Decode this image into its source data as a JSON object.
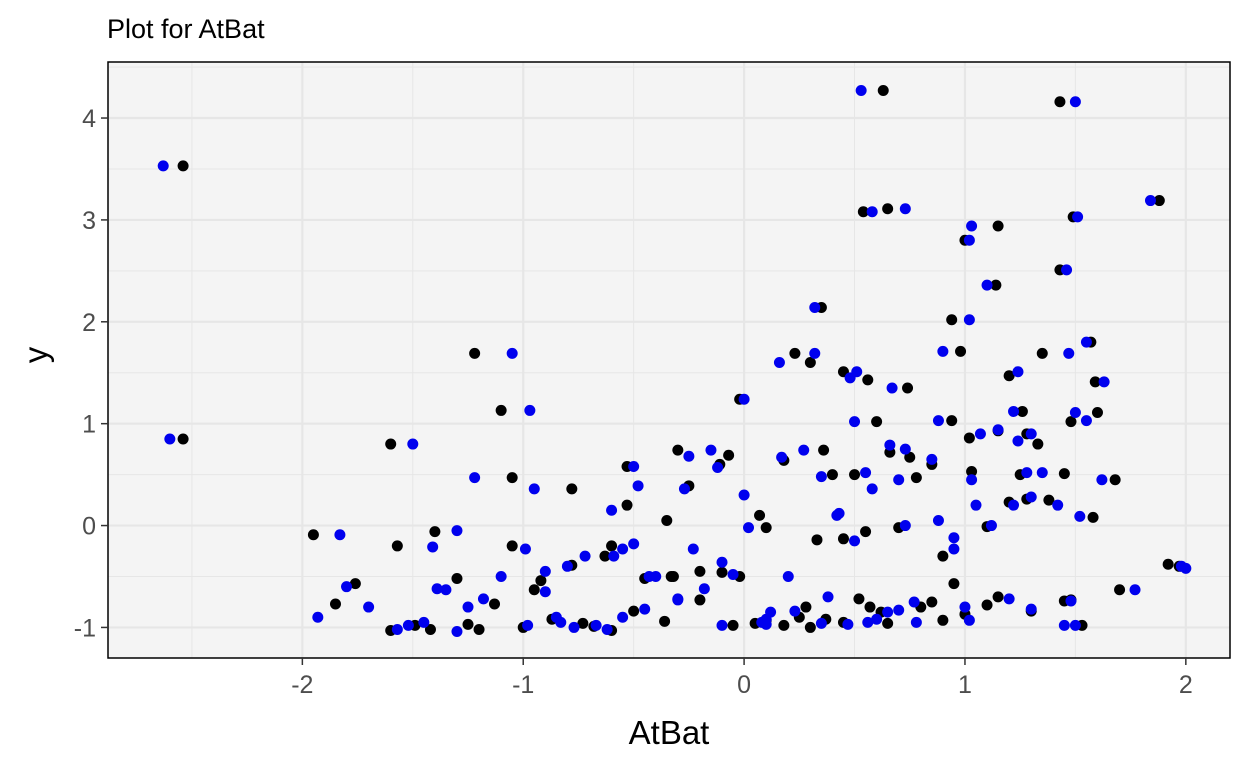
{
  "chart_data": {
    "type": "scatter",
    "title": "Plot for  AtBat",
    "xlabel": "AtBat",
    "ylabel": "y",
    "xlim": [
      -2.88,
      2.2
    ],
    "ylim": [
      -1.3,
      4.55
    ],
    "x_ticks": [
      "-2",
      "-1",
      "0",
      "1",
      "2"
    ],
    "y_ticks": [
      "-1",
      "0",
      "1",
      "2",
      "3",
      "4"
    ],
    "grid": true,
    "legend": "none",
    "colors": {
      "panel": "#f4f4f4",
      "grid": "#e6e6e6",
      "series_a": "#000000",
      "series_b": "#0000ee"
    },
    "series": [
      {
        "color": "#000000",
        "points": [
          [
            -2.54,
            3.53
          ],
          [
            -2.54,
            0.85
          ],
          [
            0.63,
            4.27
          ],
          [
            1.43,
            4.16
          ],
          [
            1.88,
            3.19
          ],
          [
            0.54,
            3.08
          ],
          [
            0.65,
            3.11
          ],
          [
            1.15,
            2.94
          ],
          [
            1.49,
            3.03
          ],
          [
            1.0,
            2.8
          ],
          [
            1.43,
            2.51
          ],
          [
            1.14,
            2.36
          ],
          [
            0.35,
            2.14
          ],
          [
            0.94,
            2.02
          ],
          [
            -1.22,
            1.69
          ],
          [
            0.23,
            1.69
          ],
          [
            0.98,
            1.71
          ],
          [
            0.3,
            1.6
          ],
          [
            1.35,
            1.69
          ],
          [
            1.57,
            1.8
          ],
          [
            1.2,
            1.47
          ],
          [
            0.45,
            1.51
          ],
          [
            0.56,
            1.43
          ],
          [
            0.74,
            1.35
          ],
          [
            1.59,
            1.41
          ],
          [
            -1.1,
            1.13
          ],
          [
            -0.02,
            1.24
          ],
          [
            0.6,
            1.02
          ],
          [
            0.94,
            1.03
          ],
          [
            1.26,
            1.12
          ],
          [
            1.6,
            1.11
          ],
          [
            -1.6,
            0.8
          ],
          [
            -1.05,
            0.47
          ],
          [
            -0.53,
            0.58
          ],
          [
            -0.3,
            0.74
          ],
          [
            -0.11,
            0.6
          ],
          [
            -0.07,
            0.69
          ],
          [
            0.18,
            0.64
          ],
          [
            0.36,
            0.74
          ],
          [
            0.5,
            0.5
          ],
          [
            0.66,
            0.72
          ],
          [
            0.75,
            0.67
          ],
          [
            0.85,
            0.6
          ],
          [
            1.02,
            0.86
          ],
          [
            1.15,
            0.93
          ],
          [
            1.28,
            0.9
          ],
          [
            1.33,
            0.8
          ],
          [
            1.45,
            0.51
          ],
          [
            1.48,
            1.02
          ],
          [
            1.68,
            0.45
          ],
          [
            -0.78,
            0.36
          ],
          [
            -0.53,
            0.2
          ],
          [
            -0.35,
            0.05
          ],
          [
            -0.25,
            0.39
          ],
          [
            0.07,
            0.1
          ],
          [
            0.33,
            -0.14
          ],
          [
            0.45,
            -0.13
          ],
          [
            0.55,
            -0.06
          ],
          [
            0.7,
            -0.02
          ],
          [
            0.9,
            -0.3
          ],
          [
            1.03,
            0.53
          ],
          [
            1.1,
            -0.01
          ],
          [
            1.2,
            0.23
          ],
          [
            1.28,
            0.26
          ],
          [
            1.38,
            0.25
          ],
          [
            1.58,
            0.08
          ],
          [
            -1.95,
            -0.09
          ],
          [
            -1.57,
            -0.2
          ],
          [
            -1.4,
            -0.06
          ],
          [
            -1.3,
            -0.52
          ],
          [
            -1.05,
            -0.2
          ],
          [
            -0.92,
            -0.54
          ],
          [
            -0.78,
            -0.39
          ],
          [
            -0.6,
            -0.2
          ],
          [
            -0.45,
            -0.52
          ],
          [
            -0.32,
            -0.5
          ],
          [
            -0.2,
            -0.45
          ],
          [
            -0.1,
            -0.46
          ],
          [
            -0.02,
            -0.5
          ],
          [
            0.1,
            -0.93
          ],
          [
            0.25,
            -0.9
          ],
          [
            0.37,
            -0.92
          ],
          [
            0.52,
            -0.72
          ],
          [
            0.65,
            -0.96
          ],
          [
            0.8,
            -0.8
          ],
          [
            0.95,
            -0.57
          ],
          [
            1.0,
            -0.87
          ],
          [
            1.15,
            -0.7
          ],
          [
            1.3,
            -0.84
          ],
          [
            1.48,
            -0.73
          ],
          [
            1.53,
            -0.98
          ],
          [
            1.7,
            -0.63
          ],
          [
            1.92,
            -0.38
          ],
          [
            1.97,
            -0.4
          ],
          [
            -1.85,
            -0.77
          ],
          [
            -1.76,
            -0.57
          ],
          [
            -1.6,
            -1.03
          ],
          [
            -1.49,
            -0.98
          ],
          [
            -1.42,
            -1.02
          ],
          [
            -1.25,
            -0.97
          ],
          [
            -1.13,
            -0.77
          ],
          [
            -1.0,
            -1.0
          ],
          [
            -0.87,
            -0.92
          ],
          [
            -0.73,
            -0.96
          ],
          [
            -0.6,
            -1.03
          ],
          [
            -0.5,
            -0.84
          ],
          [
            -0.36,
            -0.94
          ],
          [
            -0.2,
            -0.73
          ],
          [
            -0.05,
            -0.98
          ],
          [
            0.18,
            -0.98
          ],
          [
            0.3,
            -1.0
          ],
          [
            0.45,
            -0.95
          ],
          [
            0.57,
            -0.8
          ],
          [
            0.85,
            -0.75
          ],
          [
            1.1,
            -0.78
          ],
          [
            -1.2,
            -1.02
          ],
          [
            -0.95,
            -0.63
          ],
          [
            -0.68,
            -0.99
          ],
          [
            -0.33,
            -0.5
          ],
          [
            0.05,
            -0.96
          ],
          [
            0.62,
            -0.85
          ],
          [
            1.45,
            -0.74
          ],
          [
            0.4,
            0.5
          ],
          [
            0.78,
            0.47
          ],
          [
            1.25,
            0.5
          ],
          [
            -0.63,
            -0.3
          ],
          [
            0.1,
            -0.02
          ],
          [
            0.28,
            -0.8
          ],
          [
            0.9,
            -0.93
          ]
        ]
      },
      {
        "color": "#0000ee",
        "points": [
          [
            -2.63,
            3.53
          ],
          [
            -2.6,
            0.85
          ],
          [
            0.53,
            4.27
          ],
          [
            1.5,
            4.16
          ],
          [
            1.84,
            3.19
          ],
          [
            0.58,
            3.08
          ],
          [
            0.73,
            3.11
          ],
          [
            1.03,
            2.94
          ],
          [
            1.51,
            3.03
          ],
          [
            1.02,
            2.8
          ],
          [
            1.46,
            2.51
          ],
          [
            1.1,
            2.36
          ],
          [
            0.32,
            2.14
          ],
          [
            1.02,
            2.02
          ],
          [
            -1.05,
            1.69
          ],
          [
            0.32,
            1.69
          ],
          [
            0.9,
            1.71
          ],
          [
            0.16,
            1.6
          ],
          [
            1.47,
            1.69
          ],
          [
            1.55,
            1.8
          ],
          [
            1.24,
            1.51
          ],
          [
            0.51,
            1.51
          ],
          [
            0.48,
            1.45
          ],
          [
            0.67,
            1.35
          ],
          [
            1.63,
            1.41
          ],
          [
            -0.97,
            1.13
          ],
          [
            0.0,
            1.24
          ],
          [
            0.5,
            1.02
          ],
          [
            0.88,
            1.03
          ],
          [
            1.22,
            1.12
          ],
          [
            1.5,
            1.11
          ],
          [
            -1.5,
            0.8
          ],
          [
            -1.22,
            0.47
          ],
          [
            -0.5,
            0.58
          ],
          [
            -0.25,
            0.68
          ],
          [
            -0.12,
            0.57
          ],
          [
            -0.15,
            0.74
          ],
          [
            0.17,
            0.67
          ],
          [
            0.27,
            0.74
          ],
          [
            0.55,
            0.52
          ],
          [
            0.66,
            0.79
          ],
          [
            0.73,
            0.75
          ],
          [
            0.85,
            0.65
          ],
          [
            1.07,
            0.9
          ],
          [
            1.15,
            0.94
          ],
          [
            1.3,
            0.9
          ],
          [
            1.24,
            0.83
          ],
          [
            1.35,
            0.52
          ],
          [
            1.55,
            1.03
          ],
          [
            1.62,
            0.45
          ],
          [
            -0.95,
            0.36
          ],
          [
            -0.48,
            0.39
          ],
          [
            -0.6,
            0.15
          ],
          [
            -0.27,
            0.36
          ],
          [
            0.0,
            0.3
          ],
          [
            0.43,
            0.12
          ],
          [
            0.5,
            -0.15
          ],
          [
            0.58,
            0.36
          ],
          [
            0.73,
            0.0
          ],
          [
            0.95,
            -0.12
          ],
          [
            1.05,
            0.2
          ],
          [
            1.12,
            0.0
          ],
          [
            1.22,
            0.2
          ],
          [
            1.3,
            0.28
          ],
          [
            1.42,
            0.2
          ],
          [
            1.52,
            0.09
          ],
          [
            -1.93,
            -0.9
          ],
          [
            -1.83,
            -0.09
          ],
          [
            -1.41,
            -0.21
          ],
          [
            -1.3,
            -0.05
          ],
          [
            -0.99,
            -0.23
          ],
          [
            -0.9,
            -0.45
          ],
          [
            -0.8,
            -0.4
          ],
          [
            -0.55,
            -0.23
          ],
          [
            -0.43,
            -0.5
          ],
          [
            -0.3,
            -0.72
          ],
          [
            -0.23,
            -0.23
          ],
          [
            -0.1,
            -0.36
          ],
          [
            -0.05,
            -0.48
          ],
          [
            0.08,
            -0.95
          ],
          [
            0.23,
            -0.84
          ],
          [
            0.38,
            -0.7
          ],
          [
            0.56,
            -0.95
          ],
          [
            0.7,
            -0.83
          ],
          [
            0.77,
            -0.75
          ],
          [
            0.95,
            -0.23
          ],
          [
            1.0,
            -0.8
          ],
          [
            1.2,
            -0.72
          ],
          [
            1.3,
            -0.82
          ],
          [
            1.5,
            -0.98
          ],
          [
            1.48,
            -0.74
          ],
          [
            1.77,
            -0.63
          ],
          [
            1.98,
            -0.4
          ],
          [
            2.0,
            -0.42
          ],
          [
            -1.8,
            -0.6
          ],
          [
            -1.7,
            -0.8
          ],
          [
            -1.57,
            -1.02
          ],
          [
            -1.45,
            -0.95
          ],
          [
            -1.39,
            -0.62
          ],
          [
            -1.3,
            -1.04
          ],
          [
            -1.18,
            -0.72
          ],
          [
            -0.98,
            -0.98
          ],
          [
            -0.85,
            -0.9
          ],
          [
            -0.77,
            -1.0
          ],
          [
            -0.62,
            -1.02
          ],
          [
            -0.55,
            -0.9
          ],
          [
            -0.45,
            -0.82
          ],
          [
            -0.3,
            -0.73
          ],
          [
            -0.1,
            -0.98
          ],
          [
            0.1,
            -0.92
          ],
          [
            0.35,
            -0.96
          ],
          [
            0.47,
            -0.97
          ],
          [
            0.6,
            -0.92
          ],
          [
            0.78,
            -0.95
          ],
          [
            1.02,
            -0.93
          ],
          [
            -1.25,
            -0.8
          ],
          [
            -0.9,
            -0.65
          ],
          [
            -0.67,
            -0.98
          ],
          [
            -0.4,
            -0.5
          ],
          [
            0.1,
            -0.97
          ],
          [
            0.65,
            -0.85
          ],
          [
            1.45,
            -0.98
          ],
          [
            0.35,
            0.48
          ],
          [
            0.7,
            0.45
          ],
          [
            1.28,
            0.52
          ],
          [
            -0.59,
            -0.3
          ],
          [
            0.02,
            -0.02
          ],
          [
            0.2,
            -0.5
          ],
          [
            1.03,
            0.45
          ],
          [
            -1.52,
            -0.98
          ],
          [
            -1.35,
            -0.63
          ],
          [
            -1.1,
            -0.5
          ],
          [
            -0.83,
            -0.95
          ],
          [
            -0.72,
            -0.3
          ],
          [
            -0.5,
            -0.18
          ],
          [
            -0.18,
            -0.62
          ],
          [
            0.12,
            -0.85
          ],
          [
            0.42,
            0.1
          ],
          [
            0.88,
            0.05
          ]
        ]
      }
    ]
  }
}
